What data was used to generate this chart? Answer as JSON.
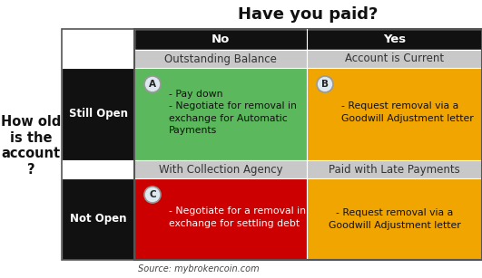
{
  "title": "Have you paid?",
  "source": "Source: mybrokencoin.com",
  "col_headers": [
    "No",
    "Yes"
  ],
  "row_headers": [
    "Still Open",
    "Not Open"
  ],
  "sub_headers_no": [
    "Outstanding Balance",
    "With Collection Agency"
  ],
  "sub_headers_yes": [
    "Account is Current",
    "Paid with Late Payments"
  ],
  "cell_A_text": "- Pay down\n- Negotiate for removal in\nexchange for Automatic\nPayments",
  "cell_B_text": "- Request removal via a\nGoodwill Adjustment letter",
  "cell_C_text": "- Negotiate for a removal in\nexchange for settling debt",
  "cell_D_text": "- Request removal via a\nGoodwill Adjustment letter",
  "cell_A_color": "#5cb85c",
  "cell_B_color": "#f0a500",
  "cell_C_color": "#cc0000",
  "cell_D_color": "#f0a500",
  "header_bg": "#111111",
  "row_header_bg": "#111111",
  "sub_header_bg": "#c8c8c8",
  "title_color": "#111111",
  "header_text_color": "#ffffff",
  "sub_header_text_color": "#333333",
  "cell_text_color": "#111111",
  "row_label_color": "#ffffff",
  "y_axis_label": "How old\nis the\naccount\n?",
  "badge_bg": "#dde8f0",
  "badge_border": "#999999",
  "fig_width": 5.31,
  "fig_height": 3.07,
  "dpi": 100
}
